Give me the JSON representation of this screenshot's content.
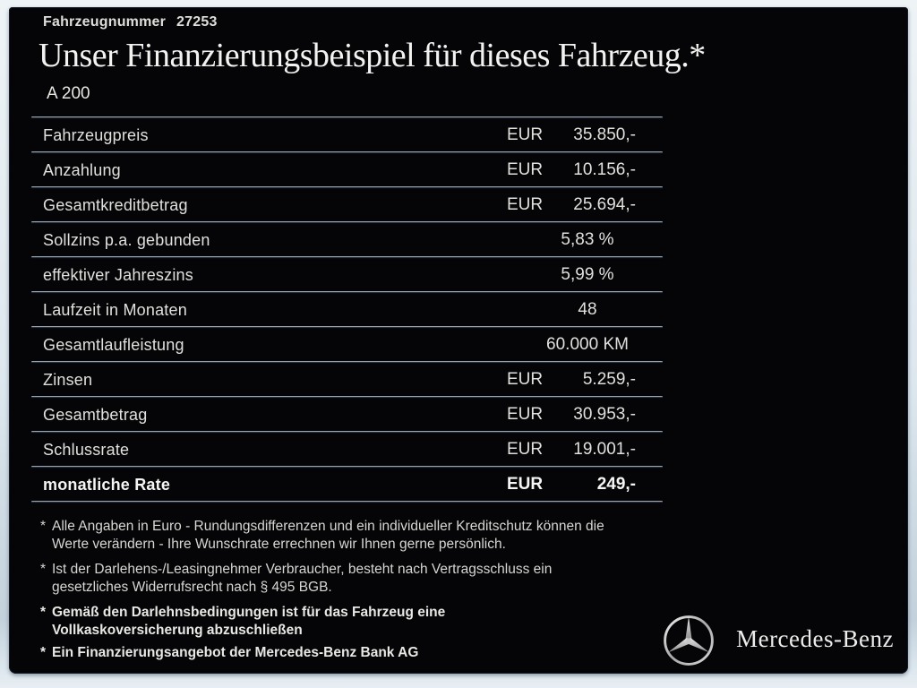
{
  "header": {
    "vehicle_number_label": "Fahrzeugnummer",
    "vehicle_number": "27253",
    "title": "Unser Finanzierungsbeispiel für dieses Fahrzeug.*",
    "model": "A 200"
  },
  "table": {
    "rows": [
      {
        "label": "Fahrzeugpreis",
        "currency": "EUR",
        "value": "35.850,-",
        "bold": false
      },
      {
        "label": "Anzahlung",
        "currency": "EUR",
        "value": "10.156,-",
        "bold": false
      },
      {
        "label": "Gesamtkreditbetrag",
        "currency": "EUR",
        "value": "25.694,-",
        "bold": false
      },
      {
        "label": "Sollzins p.a. gebunden",
        "currency": null,
        "value": "5,83 %",
        "bold": false
      },
      {
        "label": "effektiver Jahreszins",
        "currency": null,
        "value": "5,99 %",
        "bold": false
      },
      {
        "label": "Laufzeit in Monaten",
        "currency": null,
        "value": "48",
        "bold": false
      },
      {
        "label": "Gesamtlaufleistung",
        "currency": null,
        "value": "60.000 KM",
        "bold": false
      },
      {
        "label": "Zinsen",
        "currency": "EUR",
        "value": "5.259,-",
        "bold": false
      },
      {
        "label": "Gesamtbetrag",
        "currency": "EUR",
        "value": "30.953,-",
        "bold": false
      },
      {
        "label": "Schlussrate",
        "currency": "EUR",
        "value": "19.001,-",
        "bold": false
      },
      {
        "label": "monatliche Rate",
        "currency": "EUR",
        "value": "249,-",
        "bold": true
      }
    ]
  },
  "footnotes": [
    {
      "marker": "*",
      "bold": false,
      "text": "Alle Angaben in Euro - Rundungsdifferenzen und ein individueller Kreditschutz können die\nWerte verändern - Ihre Wunschrate errechnen wir Ihnen gerne persönlich."
    },
    {
      "marker": "*",
      "bold": false,
      "text": "Ist der Darlehens-/Leasingnehmer Verbraucher, besteht nach Vertragsschluss ein\ngesetzliches Widerrufsrecht nach § 495 BGB."
    },
    {
      "marker": "*",
      "bold": true,
      "text": "Gemäß den Darlehnsbedingungen ist für das Fahrzeug eine\nVollkaskoversicherung abzuschließen"
    },
    {
      "marker": "*",
      "bold": true,
      "text": "Ein Finanzierungsangebot der Mercedes-Benz Bank AG"
    }
  ],
  "brand": {
    "logo": "mercedes-star-icon",
    "name": "Mercedes-Benz"
  },
  "colors": {
    "panel_background": "#050507",
    "frame_background": "#dde7ee",
    "text": "#e2e2e2",
    "divider_light": "#98a3ad",
    "divider_dark": "#060a10"
  }
}
